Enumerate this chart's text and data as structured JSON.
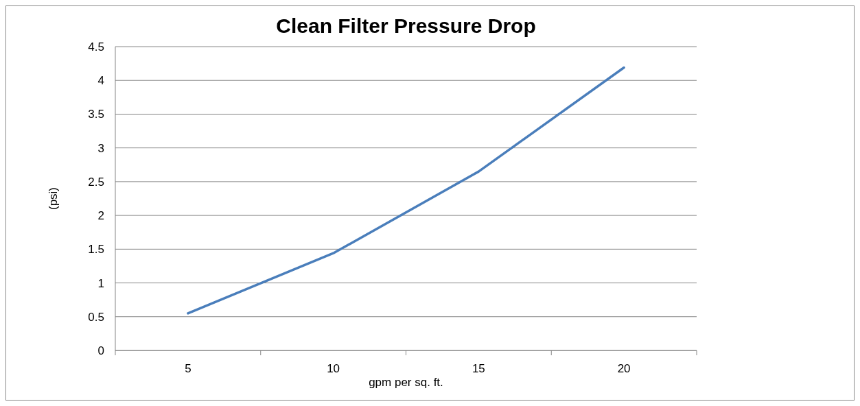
{
  "chart_data": {
    "type": "line",
    "title": "Clean Filter Pressure Drop",
    "xlabel": "gpm per sq. ft.",
    "ylabel": "(psi)",
    "categories": [
      "5",
      "10",
      "15",
      "20"
    ],
    "series": [
      {
        "color": "#4a7ebb",
        "values": [
          0.55,
          1.44,
          2.65,
          4.19
        ]
      }
    ],
    "ylim": [
      0,
      4.5
    ],
    "yticks": [
      0,
      0.5,
      1,
      1.5,
      2,
      2.5,
      3,
      3.5,
      4,
      4.5
    ],
    "grid": "y",
    "marker": "none",
    "line_style": "solid"
  }
}
